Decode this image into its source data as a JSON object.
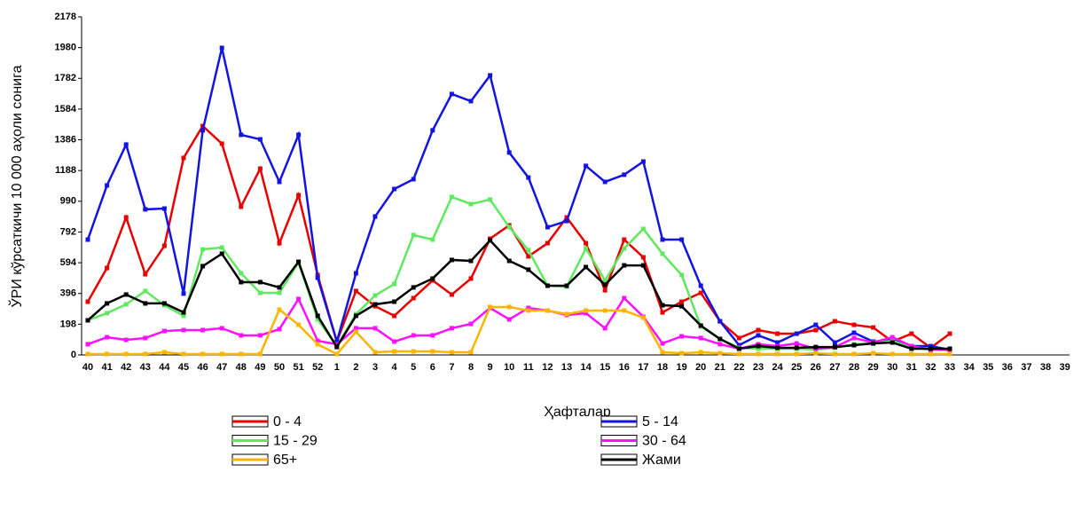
{
  "chart_data": {
    "type": "line",
    "y_label": "ЎРИ кўрсаткичи 10 000 аҳоли сонига",
    "x_label": "Ҳафталар",
    "categories": [
      "40",
      "41",
      "42",
      "43",
      "44",
      "45",
      "46",
      "47",
      "48",
      "49",
      "50",
      "51",
      "52",
      "1",
      "2",
      "3",
      "4",
      "5",
      "6",
      "7",
      "8",
      "9",
      "10",
      "11",
      "12",
      "13",
      "14",
      "15",
      "16",
      "17",
      "18",
      "19",
      "20",
      "21",
      "22",
      "23",
      "24",
      "25",
      "26",
      "27",
      "28",
      "29",
      "30",
      "31",
      "32",
      "33",
      "34",
      "35",
      "36",
      "37",
      "38",
      "39"
    ],
    "ylim": [
      0,
      2178
    ],
    "yticks": [
      0,
      198,
      396,
      594,
      792,
      990,
      1188,
      1386,
      1584,
      1782,
      1980,
      2178
    ],
    "series": [
      {
        "name": "0 - 4",
        "color": "#e80000",
        "values": [
          343,
          560,
          886,
          520,
          703,
          1269,
          1475,
          1361,
          955,
          1200,
          720,
          1029,
          515,
          86,
          412,
          314,
          252,
          366,
          480,
          389,
          492,
          749,
          835,
          635,
          720,
          886,
          720,
          417,
          743,
          629,
          274,
          343,
          400,
          217,
          109,
          160,
          137,
          137,
          160,
          217,
          194,
          177,
          86,
          137,
          46,
          137,
          null,
          null,
          null,
          null,
          null,
          null
        ]
      },
      {
        "name": "5 - 14",
        "color": "#1414e0",
        "values": [
          743,
          1092,
          1355,
          938,
          943,
          395,
          1447,
          1978,
          1418,
          1389,
          1115,
          1418,
          497,
          86,
          526,
          892,
          1069,
          1132,
          1447,
          1681,
          1635,
          1801,
          1304,
          1143,
          823,
          863,
          1218,
          1115,
          1161,
          1246,
          743,
          743,
          446,
          217,
          63,
          126,
          80,
          137,
          194,
          80,
          143,
          86,
          97,
          57,
          57,
          34,
          null,
          null,
          null,
          null,
          null,
          null
        ]
      },
      {
        "name": "15 - 29",
        "color": "#60e860",
        "values": [
          223,
          269,
          326,
          412,
          320,
          252,
          680,
          692,
          526,
          400,
          400,
          595,
          229,
          57,
          263,
          383,
          457,
          772,
          743,
          1018,
          972,
          1001,
          823,
          675,
          446,
          440,
          686,
          480,
          686,
          812,
          652,
          515,
          183,
          103,
          46,
          40,
          40,
          40,
          34,
          46,
          69,
          74,
          91,
          46,
          34,
          29,
          null,
          null,
          null,
          null,
          null,
          null
        ]
      },
      {
        "name": "30 - 64",
        "color": "#ff10ff",
        "values": [
          69,
          114,
          97,
          109,
          154,
          160,
          160,
          172,
          126,
          126,
          166,
          360,
          91,
          69,
          172,
          172,
          86,
          126,
          126,
          172,
          200,
          303,
          229,
          303,
          286,
          257,
          269,
          172,
          366,
          246,
          74,
          120,
          109,
          69,
          40,
          69,
          57,
          74,
          40,
          51,
          109,
          80,
          114,
          57,
          34,
          34,
          null,
          null,
          null,
          null,
          null,
          null
        ]
      },
      {
        "name": "65+",
        "color": "#ffb400",
        "values": [
          6,
          6,
          6,
          6,
          17,
          6,
          6,
          6,
          6,
          6,
          292,
          194,
          69,
          6,
          149,
          17,
          23,
          23,
          23,
          17,
          17,
          309,
          309,
          286,
          286,
          263,
          286,
          286,
          286,
          240,
          17,
          11,
          17,
          11,
          6,
          6,
          6,
          6,
          11,
          6,
          6,
          11,
          6,
          6,
          6,
          6,
          null,
          null,
          null,
          null,
          null,
          null
        ]
      },
      {
        "name": "Жами",
        "color": "#000000",
        "values": [
          223,
          332,
          389,
          332,
          332,
          274,
          572,
          652,
          469,
          469,
          435,
          600,
          252,
          51,
          252,
          326,
          343,
          435,
          492,
          612,
          606,
          738,
          606,
          549,
          446,
          446,
          566,
          452,
          577,
          577,
          320,
          314,
          189,
          103,
          40,
          57,
          46,
          46,
          51,
          51,
          63,
          74,
          80,
          40,
          40,
          40,
          null,
          null,
          null,
          null,
          null,
          null
        ]
      }
    ]
  }
}
